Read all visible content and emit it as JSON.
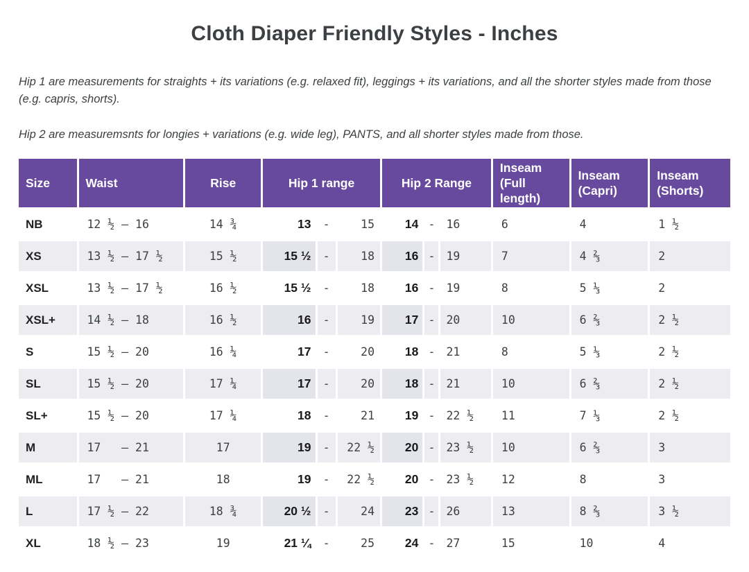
{
  "page": {
    "title": "Cloth Diaper Friendly Styles - Inches",
    "note1": "Hip 1 are measurements for straights + its variations (e.g. relaxed fit), leggings + its variations, and all the shorter styles made from those (e.g. capris, shorts).",
    "note2": "Hip 2 are measuremsnts for longies + variations (e.g. wide leg), PANTS, and all shorter styles made from those."
  },
  "table": {
    "dash": "-",
    "headers": {
      "size": "Size",
      "waist": "Waist",
      "rise": "Rise",
      "hip1": "Hip 1 range",
      "hip2": "Hip 2 Range",
      "inseam_full": "Inseam (Full length)",
      "inseam_capri": "Inseam (Capri)",
      "inseam_shorts": "Inseam (Shorts)"
    },
    "rows": [
      {
        "size": "NB",
        "waist": "12 ½ – 16",
        "rise": "14 ¾",
        "h1a": "13",
        "h1b": "15",
        "h2a": "14",
        "h2b": "16",
        "full": "6",
        "capri": "4",
        "shorts": "1 ½"
      },
      {
        "size": "XS",
        "waist": "13 ½ – 17 ½",
        "rise": "15 ½",
        "h1a": "15 ½",
        "h1b": "18",
        "h2a": "16",
        "h2b": "19",
        "full": "7",
        "capri": "4 ⅔",
        "shorts": "2"
      },
      {
        "size": "XSL",
        "waist": "13 ½ – 17 ½",
        "rise": "16 ½",
        "h1a": "15 ½",
        "h1b": "18",
        "h2a": "16",
        "h2b": "19",
        "full": "8",
        "capri": "5 ⅓",
        "shorts": "2"
      },
      {
        "size": "XSL+",
        "waist": "14 ½ – 18",
        "rise": "16 ½",
        "h1a": "16",
        "h1b": "19",
        "h2a": "17",
        "h2b": "20",
        "full": "10",
        "capri": "6 ⅔",
        "shorts": "2 ½"
      },
      {
        "size": "S",
        "waist": "15 ½ – 20",
        "rise": "16 ¼",
        "h1a": "17",
        "h1b": "20",
        "h2a": "18",
        "h2b": "21",
        "full": "8",
        "capri": "5 ⅓",
        "shorts": "2 ½"
      },
      {
        "size": "SL",
        "waist": "15 ½ – 20",
        "rise": "17 ¼",
        "h1a": "17",
        "h1b": "20",
        "h2a": "18",
        "h2b": "21",
        "full": "10",
        "capri": "6 ⅔",
        "shorts": "2 ½"
      },
      {
        "size": "SL+",
        "waist": "15 ½ – 20",
        "rise": "17 ¼",
        "h1a": "18",
        "h1b": "21",
        "h2a": "19",
        "h2b": "22 ½",
        "full": "11",
        "capri": "7 ⅓",
        "shorts": "2 ½"
      },
      {
        "size": "M",
        "waist": "17   – 21",
        "rise": "17",
        "h1a": "19",
        "h1b": "22 ½",
        "h2a": "20",
        "h2b": "23 ½",
        "full": "10",
        "capri": "6 ⅔",
        "shorts": "3"
      },
      {
        "size": "ML",
        "waist": "17   – 21",
        "rise": "18",
        "h1a": "19",
        "h1b": "22 ½",
        "h2a": "20",
        "h2b": "23 ½",
        "full": "12",
        "capri": "8",
        "shorts": "3"
      },
      {
        "size": "L",
        "waist": "17 ½ – 22",
        "rise": "18 ¾",
        "h1a": "20 ½",
        "h1b": "24",
        "h2a": "23",
        "h2b": "26",
        "full": "13",
        "capri": "8 ⅔",
        "shorts": "3 ½"
      },
      {
        "size": "XL",
        "waist": "18 ½ – 23",
        "rise": "19",
        "h1a": "21 ¼",
        "h1b": "25",
        "h2a": "24",
        "h2b": "27",
        "full": "15",
        "capri": "10",
        "shorts": "4"
      }
    ]
  },
  "colors": {
    "header_bg": "#67499E",
    "header_text": "#FFFFFF",
    "stripe_row_bg": "#ECECF1",
    "stripe_hip_cell_bg": "#E4E4EB",
    "body_text": "#3C4043",
    "emphasis_text": "#18191B"
  }
}
